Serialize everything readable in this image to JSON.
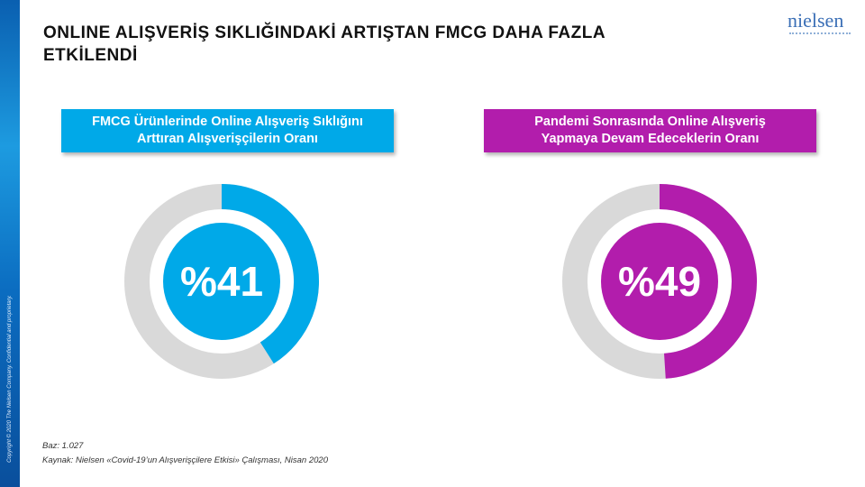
{
  "header": {
    "title": "ONLINE ALIŞVERİŞ SIKLIĞINDAKİ ARTIŞTAN FMCG DAHA FAZLA ETKİLENDİ",
    "logo": "nielsen"
  },
  "chart_data": [
    {
      "type": "donut",
      "title": "FMCG Ürünlerinde Online Alışveriş Sıklığını Arttıran Alışverişçilerin Oranı",
      "values": [
        41
      ],
      "value_labels": [
        "%41"
      ],
      "color": "#00a9e8",
      "track_color": "#d9d9d9"
    },
    {
      "type": "donut",
      "title": "Pandemi Sonrasında Online Alışveriş Yapmaya Devam Edeceklerin Oranı",
      "values": [
        49
      ],
      "value_labels": [
        "%49"
      ],
      "color": "#b21dac",
      "track_color": "#d9d9d9"
    }
  ],
  "footer": {
    "base": "Baz: 1.027",
    "source": "Kaynak:  Nielsen «Covid-19’un Alışverişçilere Etkisi» Çalışması, Nisan 2020",
    "copyright": "Copyright © 2020 The Nielsen Company. Confidential and proprietary."
  }
}
